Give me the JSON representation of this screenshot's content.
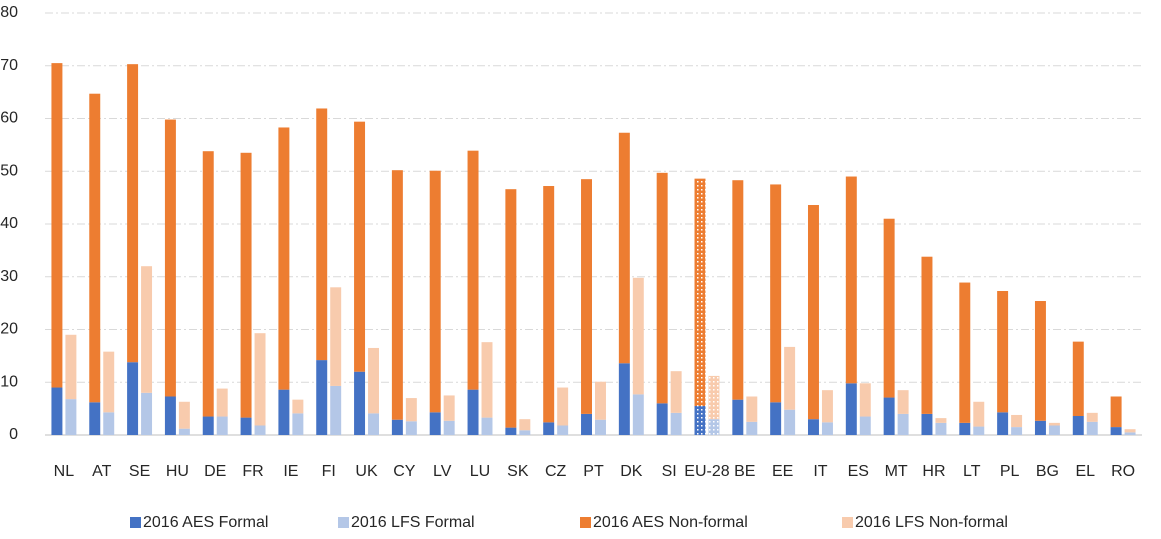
{
  "chart_data": {
    "type": "grouped_stacked_bar",
    "categories": [
      "NL",
      "AT",
      "SE",
      "HU",
      "DE",
      "FR",
      "IE",
      "FI",
      "UK",
      "CY",
      "LV",
      "LU",
      "SK",
      "CZ",
      "PT",
      "DK",
      "SI",
      "EU-28",
      "BE",
      "EE",
      "IT",
      "ES",
      "MT",
      "HR",
      "LT",
      "PL",
      "BG",
      "EL",
      "RO"
    ],
    "hatched_index": 17,
    "series": [
      {
        "name": "2016 AES Formal",
        "color": "#4472c4",
        "stack": 0,
        "values": [
          9,
          6.2,
          13.8,
          7.3,
          3.5,
          3.3,
          8.6,
          14.2,
          12,
          2.9,
          4.3,
          8.6,
          1.4,
          2.4,
          4,
          13.6,
          6,
          5.5,
          6.7,
          6.2,
          3,
          9.8,
          7.1,
          4,
          2.3,
          4.3,
          2.7,
          3.6,
          1.5
        ]
      },
      {
        "name": "2016 LFS Formal",
        "color": "#b4c7e7",
        "stack": 1,
        "values": [
          6.8,
          4.3,
          8,
          1.2,
          3.5,
          1.8,
          4.1,
          9.3,
          4.1,
          2.6,
          2.7,
          3.3,
          0.9,
          1.8,
          2.9,
          7.7,
          4.2,
          3,
          2.5,
          4.8,
          2.4,
          3.5,
          4,
          2.3,
          1.6,
          1.5,
          1.8,
          2.5,
          0.5
        ]
      },
      {
        "name": "2016 AES Non-formal",
        "color": "#ed7d31",
        "stack": 0,
        "values": [
          61.5,
          58.5,
          56.5,
          52.5,
          50.3,
          50.2,
          49.7,
          47.7,
          47.4,
          47.3,
          45.8,
          45.3,
          45.2,
          44.8,
          44.5,
          43.7,
          43.7,
          43.1,
          41.6,
          41.3,
          40.6,
          39.2,
          33.9,
          29.8,
          26.6,
          23,
          22.7,
          14.1,
          5.8
        ]
      },
      {
        "name": "2016 LFS Non-formal",
        "color": "#f8cbad",
        "stack": 1,
        "values": [
          12.2,
          11.5,
          24,
          5.1,
          5.3,
          17.5,
          2.6,
          18.7,
          12.4,
          4.4,
          4.8,
          14.3,
          2.1,
          7.2,
          7.2,
          22.1,
          7.9,
          8.2,
          4.8,
          11.9,
          6.1,
          6.3,
          4.5,
          0.9,
          4.7,
          2.3,
          0.5,
          1.7,
          0.6
        ]
      }
    ],
    "ylim": [
      0,
      80
    ],
    "yticks": [
      0,
      10,
      20,
      30,
      40,
      50,
      60,
      70,
      80
    ],
    "grid": true,
    "legend": "bottom"
  }
}
